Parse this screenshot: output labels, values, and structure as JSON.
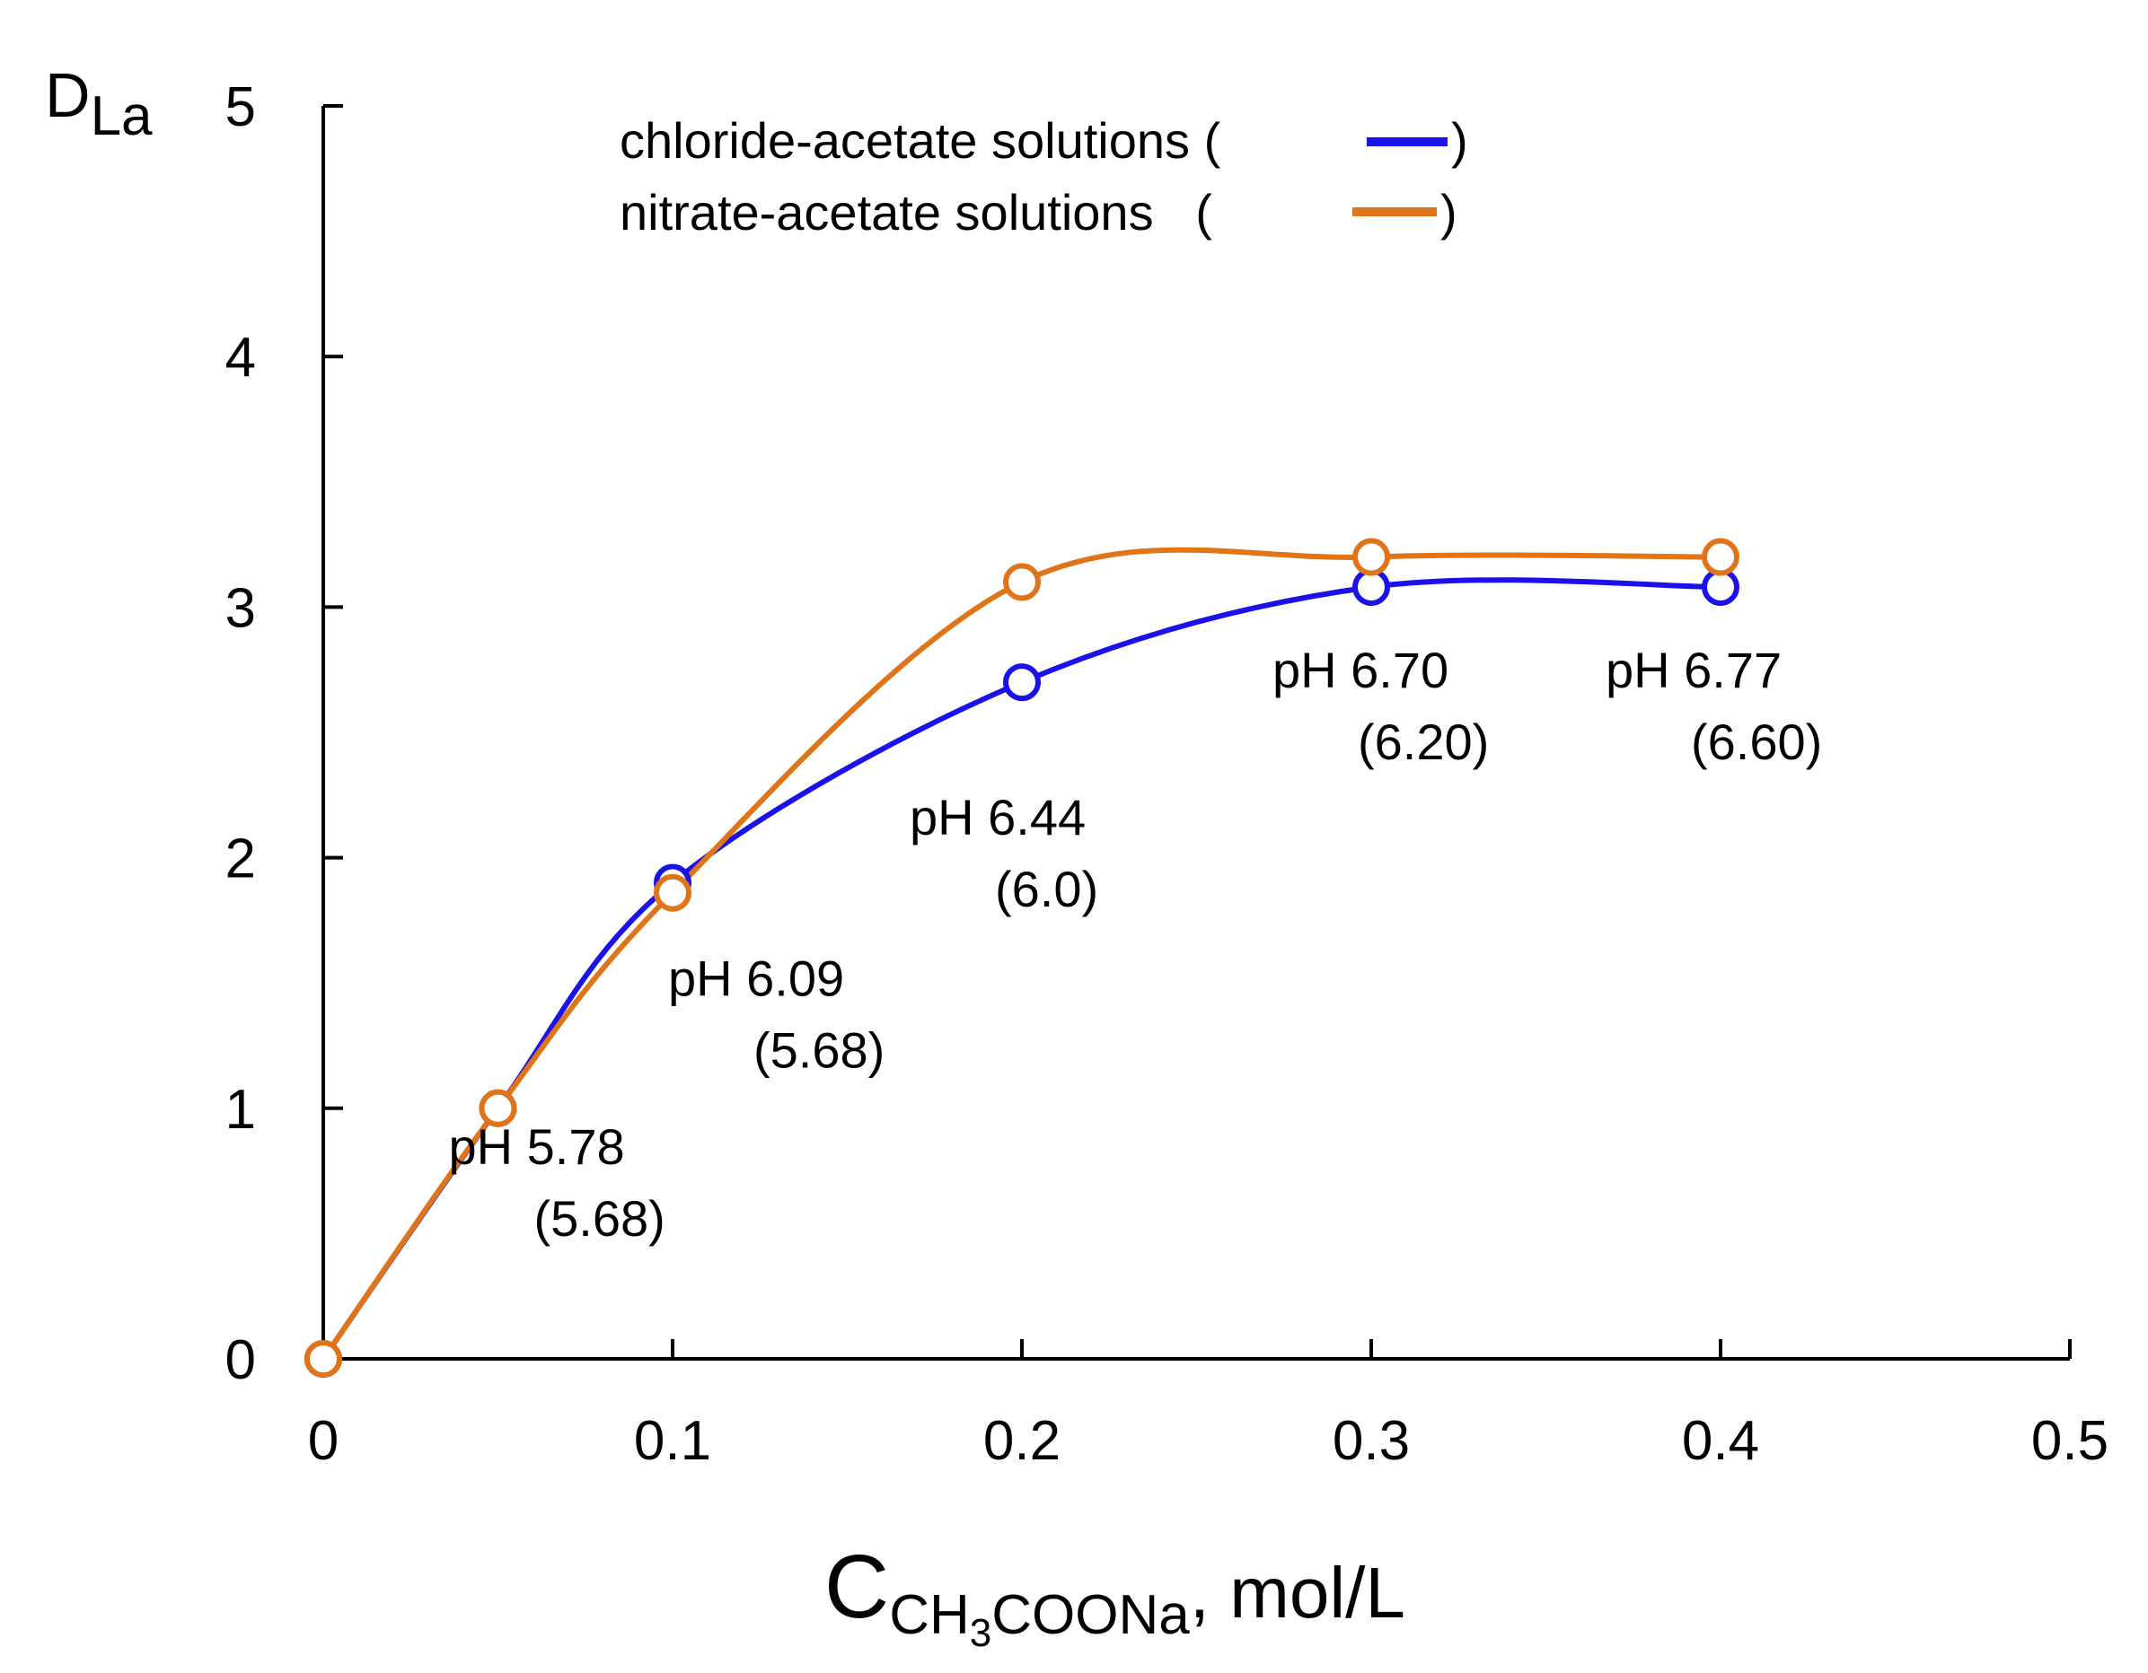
{
  "chart_data": {
    "type": "line",
    "xlabel": {
      "main": "C",
      "sub1": "CH",
      "sub2": "3",
      "sub3": "COONa",
      "rest": ", mol/L"
    },
    "ylabel": {
      "main": "D",
      "sub": "La"
    },
    "xlim": [
      0,
      0.5
    ],
    "ylim": [
      0,
      5
    ],
    "xticks": [
      0,
      0.1,
      0.2,
      0.3,
      0.4,
      0.5
    ],
    "xtick_labels": [
      "0",
      "0.1",
      "0.2",
      "0.3",
      "0.4",
      "0.5"
    ],
    "yticks": [
      0,
      1,
      2,
      3,
      4,
      5
    ],
    "ytick_labels": [
      "0",
      "1",
      "2",
      "3",
      "4",
      "5"
    ],
    "grid": false,
    "series": [
      {
        "name": "chloride-acetate solutions",
        "color": "#1a12e8",
        "x": [
          0,
          0.05,
          0.1,
          0.2,
          0.3,
          0.4
        ],
        "y": [
          0,
          1.0,
          1.9,
          2.7,
          3.08,
          3.08
        ]
      },
      {
        "name": "nitrate-acetate solutions",
        "color": "#e07418",
        "x": [
          0,
          0.05,
          0.1,
          0.2,
          0.3,
          0.4
        ],
        "y": [
          0,
          1.0,
          1.86,
          3.1,
          3.2,
          3.2
        ]
      }
    ],
    "legend": {
      "placement": "top-center",
      "entries": [
        {
          "label": "chloride-acetate solutions (",
          "close": ")",
          "color": "#1a12e8"
        },
        {
          "label": "nitrate-acetate solutions   (",
          "close": ")",
          "color": "#e07418"
        }
      ]
    },
    "annotations": [
      {
        "x": 0.05,
        "y": 1.0,
        "line1": "pH 5.78",
        "line2": "(5.68)"
      },
      {
        "x": 0.1,
        "y": 1.86,
        "line1": "pH 6.09",
        "line2": "(5.68)"
      },
      {
        "x": 0.2,
        "y": 2.7,
        "line1": "pH 6.44",
        "line2": "(6.0)"
      },
      {
        "x": 0.3,
        "y": 3.08,
        "line1": "pH 6.70",
        "line2": "(6.20)"
      },
      {
        "x": 0.4,
        "y": 3.08,
        "line1": "pH 6.77",
        "line2": "(6.60)"
      }
    ]
  }
}
